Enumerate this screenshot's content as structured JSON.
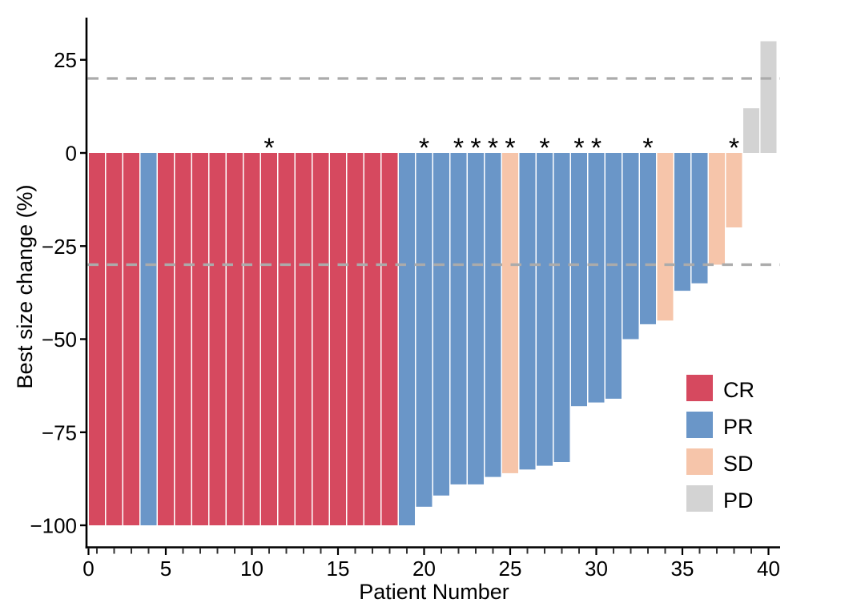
{
  "chart_data": {
    "type": "bar",
    "chart_kind": "waterfall",
    "title": "",
    "xlabel": "Patient Number",
    "ylabel": "Best size change (%)",
    "grid": false,
    "ylim": [
      -106,
      37
    ],
    "xlim": [
      0,
      40.6
    ],
    "y_ticks": [
      {
        "value": 25,
        "label": "25"
      },
      {
        "value": 0,
        "label": "0"
      },
      {
        "value": -25,
        "label": "−25"
      },
      {
        "value": -50,
        "label": "−50"
      },
      {
        "value": -75,
        "label": "−75"
      },
      {
        "value": -100,
        "label": "−100"
      }
    ],
    "x_ticks_labeled": [
      {
        "value": 0,
        "label": "0"
      },
      {
        "value": 5,
        "label": "5"
      },
      {
        "value": 10,
        "label": "10"
      },
      {
        "value": 15,
        "label": "15"
      },
      {
        "value": 20,
        "label": "20"
      },
      {
        "value": 25,
        "label": "25"
      },
      {
        "value": 30,
        "label": "30"
      },
      {
        "value": 35,
        "label": "35"
      },
      {
        "value": 40,
        "label": "40"
      }
    ],
    "x_minor_tick_step": 1,
    "reference_lines": [
      {
        "value": 20,
        "style": "dashed",
        "color": "#ABABAB"
      },
      {
        "value": -30,
        "style": "dashed",
        "color": "#ABABAB"
      }
    ],
    "annotation_symbol": "*",
    "legend": {
      "position": "inside-right",
      "items": [
        {
          "label": "CR",
          "color": "#D6495F"
        },
        {
          "label": "PR",
          "color": "#6A96C8"
        },
        {
          "label": "SD",
          "color": "#F6C5AA"
        },
        {
          "label": "PD",
          "color": "#D3D3D3"
        }
      ]
    },
    "patients": [
      {
        "patient": 1,
        "value": -100,
        "response": "CR",
        "starred": false
      },
      {
        "patient": 2,
        "value": -100,
        "response": "CR",
        "starred": false
      },
      {
        "patient": 3,
        "value": -100,
        "response": "CR",
        "starred": false
      },
      {
        "patient": 4,
        "value": -100,
        "response": "PR",
        "starred": false
      },
      {
        "patient": 5,
        "value": -100,
        "response": "CR",
        "starred": false
      },
      {
        "patient": 6,
        "value": -100,
        "response": "CR",
        "starred": false
      },
      {
        "patient": 7,
        "value": -100,
        "response": "CR",
        "starred": false
      },
      {
        "patient": 8,
        "value": -100,
        "response": "CR",
        "starred": false
      },
      {
        "patient": 9,
        "value": -100,
        "response": "CR",
        "starred": false
      },
      {
        "patient": 10,
        "value": -100,
        "response": "CR",
        "starred": false
      },
      {
        "patient": 11,
        "value": -100,
        "response": "CR",
        "starred": true
      },
      {
        "patient": 12,
        "value": -100,
        "response": "CR",
        "starred": false
      },
      {
        "patient": 13,
        "value": -100,
        "response": "CR",
        "starred": false
      },
      {
        "patient": 14,
        "value": -100,
        "response": "CR",
        "starred": false
      },
      {
        "patient": 15,
        "value": -100,
        "response": "CR",
        "starred": false
      },
      {
        "patient": 16,
        "value": -100,
        "response": "CR",
        "starred": false
      },
      {
        "patient": 17,
        "value": -100,
        "response": "CR",
        "starred": false
      },
      {
        "patient": 18,
        "value": -100,
        "response": "CR",
        "starred": false
      },
      {
        "patient": 19,
        "value": -100,
        "response": "PR",
        "starred": false
      },
      {
        "patient": 20,
        "value": -95,
        "response": "PR",
        "starred": true
      },
      {
        "patient": 21,
        "value": -92,
        "response": "PR",
        "starred": false
      },
      {
        "patient": 22,
        "value": -89,
        "response": "PR",
        "starred": true
      },
      {
        "patient": 23,
        "value": -89,
        "response": "PR",
        "starred": true
      },
      {
        "patient": 24,
        "value": -87,
        "response": "PR",
        "starred": true
      },
      {
        "patient": 25,
        "value": -86,
        "response": "SD",
        "starred": true
      },
      {
        "patient": 26,
        "value": -85,
        "response": "PR",
        "starred": false
      },
      {
        "patient": 27,
        "value": -84,
        "response": "PR",
        "starred": true
      },
      {
        "patient": 28,
        "value": -83,
        "response": "PR",
        "starred": false
      },
      {
        "patient": 29,
        "value": -68,
        "response": "PR",
        "starred": true
      },
      {
        "patient": 30,
        "value": -67,
        "response": "PR",
        "starred": true
      },
      {
        "patient": 31,
        "value": -66,
        "response": "PR",
        "starred": false
      },
      {
        "patient": 32,
        "value": -50,
        "response": "PR",
        "starred": false
      },
      {
        "patient": 33,
        "value": -46,
        "response": "PR",
        "starred": true
      },
      {
        "patient": 34,
        "value": -45,
        "response": "SD",
        "starred": false
      },
      {
        "patient": 35,
        "value": -37,
        "response": "PR",
        "starred": false
      },
      {
        "patient": 36,
        "value": -35,
        "response": "PR",
        "starred": false
      },
      {
        "patient": 37,
        "value": -30,
        "response": "SD",
        "starred": false
      },
      {
        "patient": 38,
        "value": -20,
        "response": "SD",
        "starred": true
      },
      {
        "patient": 39,
        "value": 12,
        "response": "PD",
        "starred": false
      },
      {
        "patient": 40,
        "value": 30,
        "response": "PD",
        "starred": false
      }
    ]
  }
}
